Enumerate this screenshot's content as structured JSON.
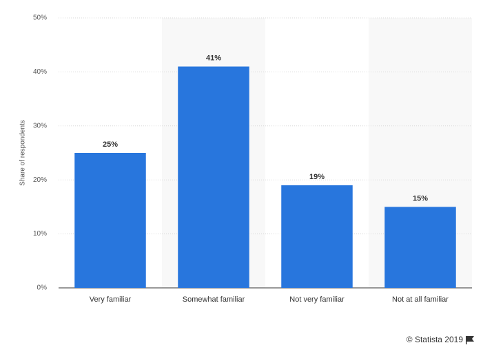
{
  "chart_data": {
    "type": "bar",
    "y_label": "Share of respondents",
    "categories": [
      "Very familiar",
      "Somewhat familiar",
      "Not very familiar",
      "Not at all familiar"
    ],
    "values": [
      25,
      41,
      19,
      15
    ],
    "value_labels": [
      "25%",
      "41%",
      "19%",
      "15%"
    ],
    "color": "#2876dd",
    "ylim": [
      0,
      50
    ],
    "yticks": [
      {
        "value": 0,
        "label": "0%"
      },
      {
        "value": 10,
        "label": "10%"
      },
      {
        "value": 20,
        "label": "20%"
      },
      {
        "value": 30,
        "label": "30%"
      },
      {
        "value": 40,
        "label": "40%"
      },
      {
        "value": 50,
        "label": "50%"
      }
    ],
    "grid": true,
    "credit": "© Statista 2019"
  }
}
